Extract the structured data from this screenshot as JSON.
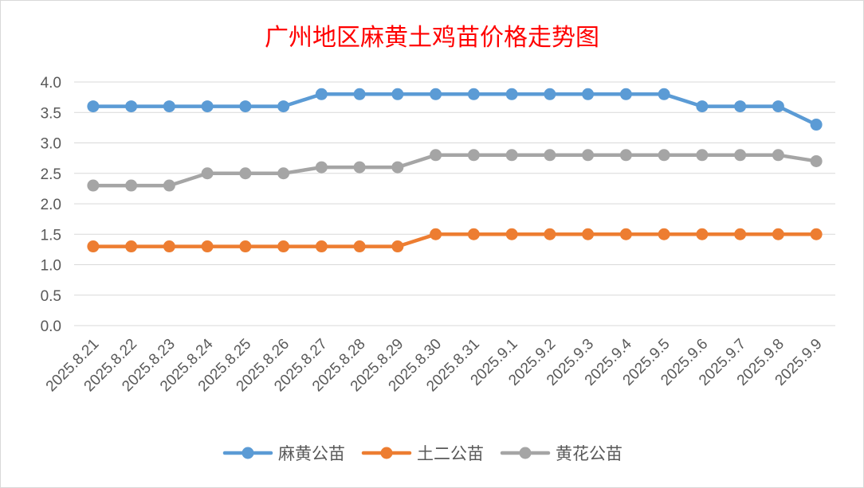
{
  "chart_data": {
    "type": "line",
    "title": "广州地区麻黄土鸡苗价格走势图",
    "xlabel": "",
    "ylabel": "",
    "ylim": [
      0,
      4.0
    ],
    "yticks": [
      "0.0",
      "0.5",
      "1.0",
      "1.5",
      "2.0",
      "2.5",
      "3.0",
      "3.5",
      "4.0"
    ],
    "grid": true,
    "legend": "bottom",
    "categories": [
      "2025.8.21",
      "2025.8.22",
      "2025.8.23",
      "2025.8.24",
      "2025.8.25",
      "2025.8.26",
      "2025.8.27",
      "2025.8.28",
      "2025.8.29",
      "2025.8.30",
      "2025.8.31",
      "2025.9.1",
      "2025.9.2",
      "2025.9.3",
      "2025.9.4",
      "2025.9.5",
      "2025.9.6",
      "2025.9.7",
      "2025.9.8",
      "2025.9.9"
    ],
    "series": [
      {
        "name": "麻黄公苗",
        "color": "#5b9bd5",
        "values": [
          3.6,
          3.6,
          3.6,
          3.6,
          3.6,
          3.6,
          3.8,
          3.8,
          3.8,
          3.8,
          3.8,
          3.8,
          3.8,
          3.8,
          3.8,
          3.8,
          3.6,
          3.6,
          3.6,
          3.3
        ]
      },
      {
        "name": "土二公苗",
        "color": "#ed7d31",
        "values": [
          1.3,
          1.3,
          1.3,
          1.3,
          1.3,
          1.3,
          1.3,
          1.3,
          1.3,
          1.5,
          1.5,
          1.5,
          1.5,
          1.5,
          1.5,
          1.5,
          1.5,
          1.5,
          1.5,
          1.5
        ]
      },
      {
        "name": "黄花公苗",
        "color": "#a5a5a5",
        "values": [
          2.3,
          2.3,
          2.3,
          2.5,
          2.5,
          2.5,
          2.6,
          2.6,
          2.6,
          2.8,
          2.8,
          2.8,
          2.8,
          2.8,
          2.8,
          2.8,
          2.8,
          2.8,
          2.8,
          2.7
        ]
      }
    ]
  }
}
